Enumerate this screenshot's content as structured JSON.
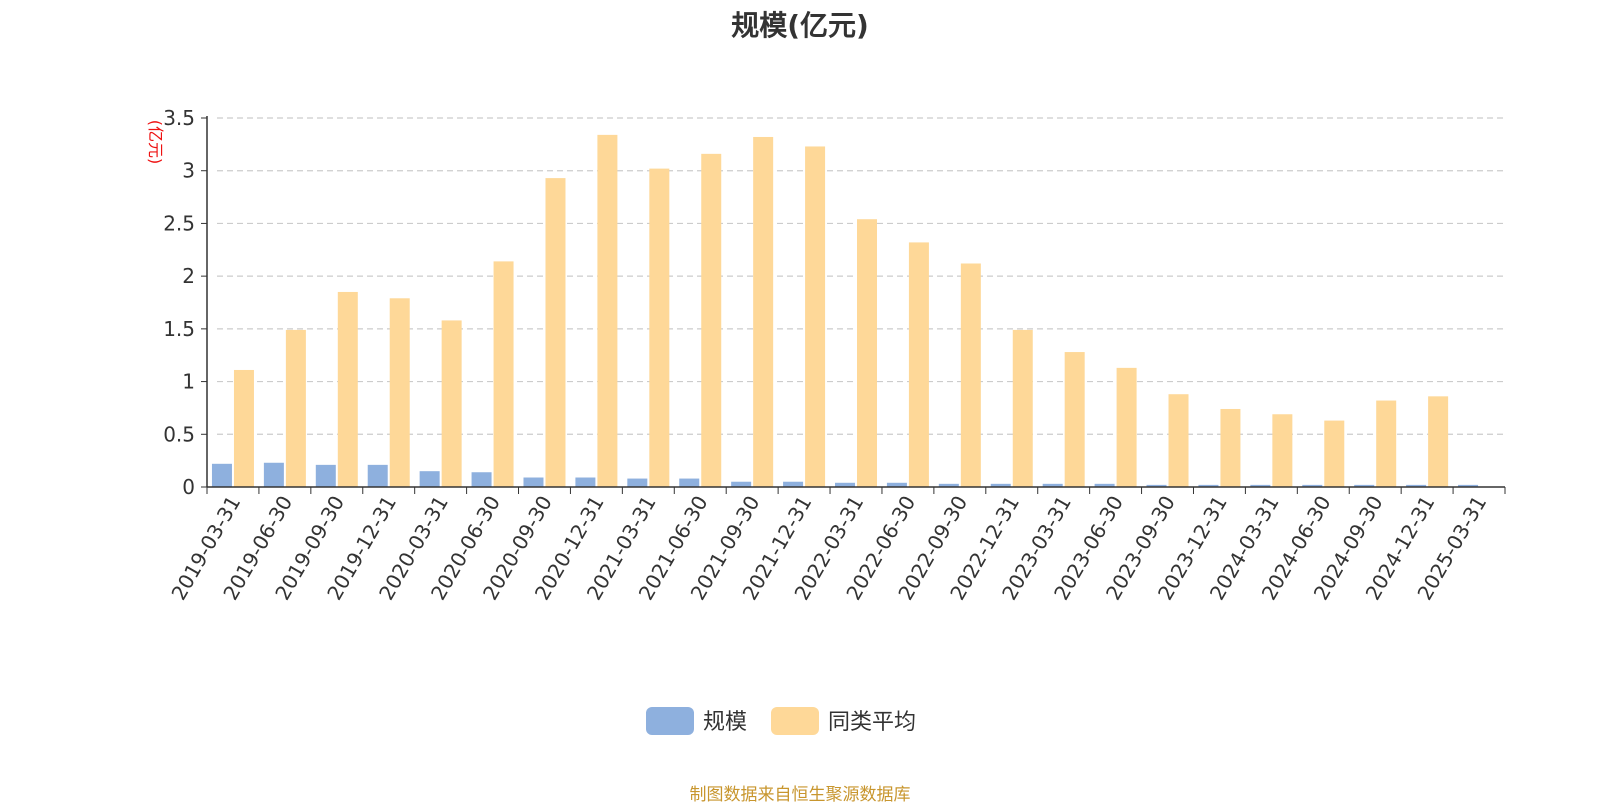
{
  "chart_data": {
    "type": "bar",
    "title": "规模(亿元)",
    "ylabel": "(亿元)",
    "xlabel": "",
    "ylim": [
      0,
      3.5
    ],
    "yticks": [
      "0",
      "0.5",
      "1",
      "1.5",
      "2",
      "2.5",
      "3",
      "3.5"
    ],
    "grid": true,
    "legend_position": "bottom",
    "categories": [
      "2019-03-31",
      "2019-06-30",
      "2019-09-30",
      "2019-12-31",
      "2020-03-31",
      "2020-06-30",
      "2020-09-30",
      "2020-12-31",
      "2021-03-31",
      "2021-06-30",
      "2021-09-30",
      "2021-12-31",
      "2022-03-31",
      "2022-06-30",
      "2022-09-30",
      "2022-12-31",
      "2023-03-31",
      "2023-06-30",
      "2023-09-30",
      "2023-12-31",
      "2024-03-31",
      "2024-06-30",
      "2024-09-30",
      "2024-12-31",
      "2025-03-31"
    ],
    "series": [
      {
        "name": "规模",
        "color": "#8eb0de",
        "values": [
          0.22,
          0.23,
          0.21,
          0.21,
          0.15,
          0.14,
          0.09,
          0.09,
          0.08,
          0.08,
          0.05,
          0.05,
          0.04,
          0.04,
          0.03,
          0.03,
          0.03,
          0.03,
          0.02,
          0.02,
          0.02,
          0.02,
          0.02,
          0.02,
          0.02
        ]
      },
      {
        "name": "同类平均",
        "color": "#fed898",
        "values": [
          1.11,
          1.49,
          1.85,
          1.79,
          1.58,
          2.14,
          2.93,
          3.34,
          3.02,
          3.16,
          3.32,
          3.23,
          2.54,
          2.32,
          2.12,
          1.49,
          1.28,
          1.13,
          0.88,
          0.74,
          0.69,
          0.63,
          0.82,
          0.86,
          null
        ]
      }
    ]
  },
  "source": "制图数据来自恒生聚源数据库"
}
